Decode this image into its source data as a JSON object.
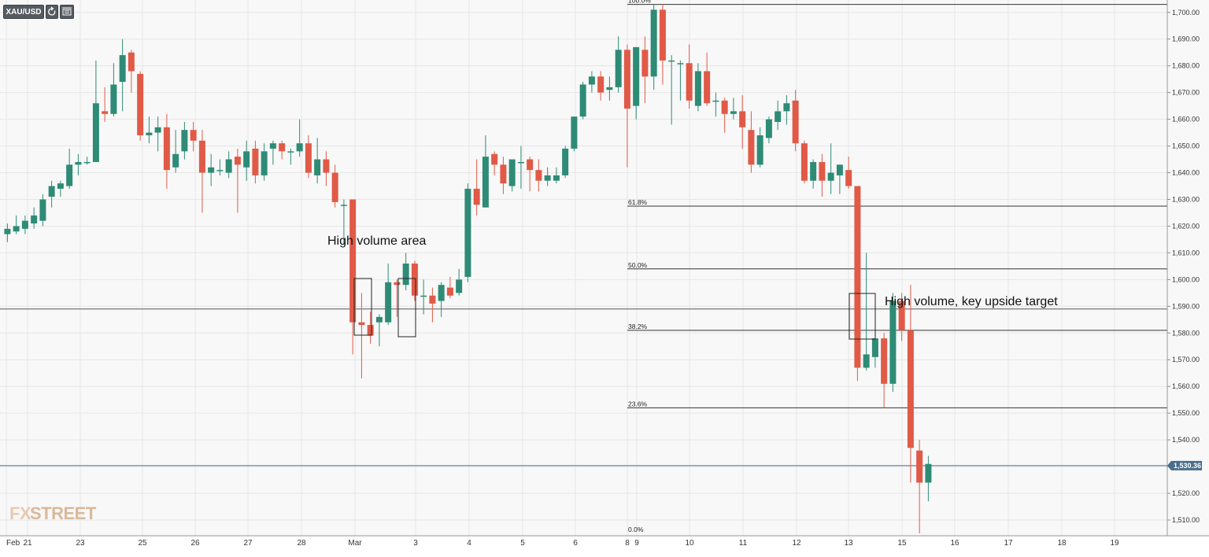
{
  "toolbar": {
    "symbol": "XAU/USD",
    "refresh_icon": "refresh-icon",
    "bars_icon": "bar-style-icon"
  },
  "watermark": {
    "part1": "FX",
    "part2": "STREET"
  },
  "colors": {
    "up": "#2e8b76",
    "down": "#e05a47",
    "grid": "#e6e6e6",
    "level": "#555555",
    "current": "#4a6d8c"
  },
  "chart_data": {
    "type": "candlestick",
    "symbol": "XAU/USD",
    "ylim": [
      1504,
      1703.5
    ],
    "y_ticks": [
      "1,510.00",
      "1,520.00",
      "1,530.00",
      "1,540.00",
      "1,550.00",
      "1,560.00",
      "1,570.00",
      "1,580.00",
      "1,590.00",
      "1,600.00",
      "1,610.00",
      "1,620.00",
      "1,630.00",
      "1,640.00",
      "1,650.00",
      "1,660.00",
      "1,670.00",
      "1,680.00",
      "1,690.00",
      "1,700.00"
    ],
    "x_ticks": [
      "Feb",
      "21",
      "23",
      "25",
      "26",
      "27",
      "28",
      "Mar",
      "3",
      "4",
      "5",
      "6",
      "8",
      "9",
      "10",
      "11",
      "12",
      "13",
      "15",
      "16",
      "17",
      "18",
      "19"
    ],
    "current_price": 1530.36,
    "current_price_label": "1,530.36",
    "horizontal_level": 1589,
    "fibonacci": [
      {
        "label": "100.0%",
        "price": 1703
      },
      {
        "label": "61.8%",
        "price": 1627.5
      },
      {
        "label": "50.0%",
        "price": 1604
      },
      {
        "label": "38.2%",
        "price": 1581
      },
      {
        "label": "23.6%",
        "price": 1552
      },
      {
        "label": "0.0%",
        "price": 1505
      }
    ],
    "annotations": [
      {
        "text": "High volume area"
      },
      {
        "text": "High volume, key upside target"
      }
    ],
    "candles": [
      {
        "o": 1617,
        "h": 1621,
        "l": 1614,
        "c": 1619
      },
      {
        "o": 1618,
        "h": 1624,
        "l": 1617,
        "c": 1620
      },
      {
        "o": 1619,
        "h": 1624,
        "l": 1617,
        "c": 1622
      },
      {
        "o": 1621,
        "h": 1627,
        "l": 1619,
        "c": 1624
      },
      {
        "o": 1622,
        "h": 1632,
        "l": 1620,
        "c": 1630
      },
      {
        "o": 1631,
        "h": 1637,
        "l": 1627,
        "c": 1635
      },
      {
        "o": 1634,
        "h": 1637,
        "l": 1631,
        "c": 1636
      },
      {
        "o": 1635,
        "h": 1649,
        "l": 1634,
        "c": 1643
      },
      {
        "o": 1643,
        "h": 1647,
        "l": 1639,
        "c": 1644
      },
      {
        "o": 1644,
        "h": 1646,
        "l": 1643,
        "c": 1644
      },
      {
        "o": 1644,
        "h": 1682,
        "l": 1644,
        "c": 1666
      },
      {
        "o": 1663,
        "h": 1672,
        "l": 1659,
        "c": 1662
      },
      {
        "o": 1662,
        "h": 1681,
        "l": 1661,
        "c": 1673
      },
      {
        "o": 1674,
        "h": 1690,
        "l": 1663,
        "c": 1684
      },
      {
        "o": 1685,
        "h": 1686,
        "l": 1670,
        "c": 1678
      },
      {
        "o": 1677,
        "h": 1678,
        "l": 1652,
        "c": 1654
      },
      {
        "o": 1654,
        "h": 1661,
        "l": 1651,
        "c": 1655
      },
      {
        "o": 1655,
        "h": 1661,
        "l": 1648,
        "c": 1657
      },
      {
        "o": 1657,
        "h": 1662,
        "l": 1634,
        "c": 1641
      },
      {
        "o": 1642,
        "h": 1656,
        "l": 1640,
        "c": 1647
      },
      {
        "o": 1648,
        "h": 1659,
        "l": 1645,
        "c": 1656
      },
      {
        "o": 1656,
        "h": 1659,
        "l": 1648,
        "c": 1652
      },
      {
        "o": 1652,
        "h": 1656,
        "l": 1625,
        "c": 1640
      },
      {
        "o": 1640,
        "h": 1647,
        "l": 1635,
        "c": 1642
      },
      {
        "o": 1641,
        "h": 1645,
        "l": 1639,
        "c": 1641
      },
      {
        "o": 1640,
        "h": 1648,
        "l": 1638,
        "c": 1645
      },
      {
        "o": 1646,
        "h": 1649,
        "l": 1625,
        "c": 1643
      },
      {
        "o": 1642,
        "h": 1652,
        "l": 1637,
        "c": 1648
      },
      {
        "o": 1649,
        "h": 1652,
        "l": 1636,
        "c": 1639
      },
      {
        "o": 1639,
        "h": 1651,
        "l": 1637,
        "c": 1648
      },
      {
        "o": 1649,
        "h": 1652,
        "l": 1643,
        "c": 1651
      },
      {
        "o": 1651,
        "h": 1652,
        "l": 1645,
        "c": 1648
      },
      {
        "o": 1648,
        "h": 1649,
        "l": 1643,
        "c": 1648
      },
      {
        "o": 1648,
        "h": 1660,
        "l": 1646,
        "c": 1651
      },
      {
        "o": 1651,
        "h": 1654,
        "l": 1638,
        "c": 1640
      },
      {
        "o": 1639,
        "h": 1653,
        "l": 1636,
        "c": 1645
      },
      {
        "o": 1645,
        "h": 1648,
        "l": 1635,
        "c": 1640
      },
      {
        "o": 1640,
        "h": 1643,
        "l": 1627,
        "c": 1629
      },
      {
        "o": 1628,
        "h": 1630,
        "l": 1613,
        "c": 1628
      },
      {
        "o": 1630,
        "h": 1630,
        "l": 1572,
        "c": 1584
      },
      {
        "o": 1584,
        "h": 1595,
        "l": 1563,
        "c": 1583
      },
      {
        "o": 1583,
        "h": 1588,
        "l": 1576,
        "c": 1579
      },
      {
        "o": 1584,
        "h": 1587,
        "l": 1575,
        "c": 1586
      },
      {
        "o": 1584,
        "h": 1606,
        "l": 1583,
        "c": 1599
      },
      {
        "o": 1599,
        "h": 1600,
        "l": 1586,
        "c": 1598
      },
      {
        "o": 1598,
        "h": 1610,
        "l": 1596,
        "c": 1606
      },
      {
        "o": 1606,
        "h": 1607,
        "l": 1592,
        "c": 1594
      },
      {
        "o": 1594,
        "h": 1600,
        "l": 1587,
        "c": 1594
      },
      {
        "o": 1594,
        "h": 1597,
        "l": 1584,
        "c": 1591
      },
      {
        "o": 1592,
        "h": 1599,
        "l": 1586,
        "c": 1598
      },
      {
        "o": 1597,
        "h": 1601,
        "l": 1593,
        "c": 1594
      },
      {
        "o": 1595,
        "h": 1604,
        "l": 1594,
        "c": 1600
      },
      {
        "o": 1601,
        "h": 1636,
        "l": 1599,
        "c": 1634
      },
      {
        "o": 1634,
        "h": 1645,
        "l": 1624,
        "c": 1628
      },
      {
        "o": 1627,
        "h": 1654,
        "l": 1627,
        "c": 1646
      },
      {
        "o": 1647,
        "h": 1648,
        "l": 1639,
        "c": 1643
      },
      {
        "o": 1643,
        "h": 1646,
        "l": 1632,
        "c": 1636
      },
      {
        "o": 1635,
        "h": 1645,
        "l": 1633,
        "c": 1645
      },
      {
        "o": 1644,
        "h": 1650,
        "l": 1634,
        "c": 1644
      },
      {
        "o": 1645,
        "h": 1646,
        "l": 1633,
        "c": 1641
      },
      {
        "o": 1641,
        "h": 1645,
        "l": 1633,
        "c": 1637
      },
      {
        "o": 1637,
        "h": 1642,
        "l": 1635,
        "c": 1639
      },
      {
        "o": 1637,
        "h": 1642,
        "l": 1636,
        "c": 1639
      },
      {
        "o": 1639,
        "h": 1650,
        "l": 1638,
        "c": 1649
      },
      {
        "o": 1649,
        "h": 1661,
        "l": 1648,
        "c": 1661
      },
      {
        "o": 1661,
        "h": 1674,
        "l": 1660,
        "c": 1673
      },
      {
        "o": 1673,
        "h": 1678,
        "l": 1670,
        "c": 1676
      },
      {
        "o": 1676,
        "h": 1678,
        "l": 1667,
        "c": 1670
      },
      {
        "o": 1671,
        "h": 1676,
        "l": 1667,
        "c": 1672
      },
      {
        "o": 1672,
        "h": 1691,
        "l": 1670,
        "c": 1686
      },
      {
        "o": 1686,
        "h": 1688,
        "l": 1642,
        "c": 1664
      },
      {
        "o": 1665,
        "h": 1687,
        "l": 1660,
        "c": 1687
      },
      {
        "o": 1686,
        "h": 1691,
        "l": 1666,
        "c": 1676
      },
      {
        "o": 1676,
        "h": 1703,
        "l": 1671,
        "c": 1701
      },
      {
        "o": 1701,
        "h": 1703,
        "l": 1673,
        "c": 1682
      },
      {
        "o": 1682,
        "h": 1684,
        "l": 1658,
        "c": 1682
      },
      {
        "o": 1681,
        "h": 1682,
        "l": 1667,
        "c": 1681
      },
      {
        "o": 1681,
        "h": 1688,
        "l": 1664,
        "c": 1667
      },
      {
        "o": 1665,
        "h": 1681,
        "l": 1663,
        "c": 1678
      },
      {
        "o": 1678,
        "h": 1685,
        "l": 1665,
        "c": 1666
      },
      {
        "o": 1667,
        "h": 1670,
        "l": 1661,
        "c": 1667
      },
      {
        "o": 1667,
        "h": 1668,
        "l": 1655,
        "c": 1662
      },
      {
        "o": 1662,
        "h": 1668,
        "l": 1660,
        "c": 1663
      },
      {
        "o": 1663,
        "h": 1669,
        "l": 1649,
        "c": 1657
      },
      {
        "o": 1656,
        "h": 1663,
        "l": 1640,
        "c": 1643
      },
      {
        "o": 1643,
        "h": 1657,
        "l": 1642,
        "c": 1654
      },
      {
        "o": 1653,
        "h": 1661,
        "l": 1651,
        "c": 1660
      },
      {
        "o": 1659,
        "h": 1667,
        "l": 1656,
        "c": 1663
      },
      {
        "o": 1663,
        "h": 1669,
        "l": 1658,
        "c": 1666
      },
      {
        "o": 1667,
        "h": 1671,
        "l": 1648,
        "c": 1651
      },
      {
        "o": 1651,
        "h": 1652,
        "l": 1636,
        "c": 1637
      },
      {
        "o": 1637,
        "h": 1645,
        "l": 1634,
        "c": 1644
      },
      {
        "o": 1644,
        "h": 1647,
        "l": 1631,
        "c": 1637
      },
      {
        "o": 1637,
        "h": 1651,
        "l": 1632,
        "c": 1640
      },
      {
        "o": 1639,
        "h": 1642,
        "l": 1632,
        "c": 1643
      },
      {
        "o": 1641,
        "h": 1646,
        "l": 1634,
        "c": 1635
      },
      {
        "o": 1635,
        "h": 1635,
        "l": 1562,
        "c": 1567
      },
      {
        "o": 1567,
        "h": 1610,
        "l": 1566,
        "c": 1572
      },
      {
        "o": 1571,
        "h": 1578,
        "l": 1567,
        "c": 1578
      },
      {
        "o": 1578,
        "h": 1580,
        "l": 1552,
        "c": 1561
      },
      {
        "o": 1561,
        "h": 1595,
        "l": 1558,
        "c": 1592
      },
      {
        "o": 1592,
        "h": 1595,
        "l": 1577,
        "c": 1581
      },
      {
        "o": 1581,
        "h": 1598,
        "l": 1524,
        "c": 1537
      },
      {
        "o": 1536,
        "h": 1540,
        "l": 1505,
        "c": 1524
      },
      {
        "o": 1524,
        "h": 1534,
        "l": 1517,
        "c": 1531
      }
    ]
  }
}
